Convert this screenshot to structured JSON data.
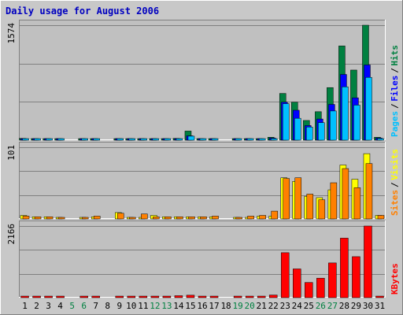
{
  "chart_data": [
    {
      "type": "bar",
      "title": "Daily usage for August 2006",
      "categories": [
        "1",
        "2",
        "3",
        "4",
        "5",
        "6",
        "7",
        "8",
        "9",
        "10",
        "11",
        "12",
        "13",
        "14",
        "15",
        "16",
        "17",
        "18",
        "19",
        "20",
        "21",
        "22",
        "23",
        "24",
        "25",
        "26",
        "27",
        "28",
        "29",
        "30",
        "31"
      ],
      "weekend_days": [
        "5",
        "6",
        "12",
        "13",
        "19",
        "20",
        "26",
        "27"
      ],
      "ymax_label": "1574",
      "ylim": [
        0,
        1574
      ],
      "right_label": [
        "Pages",
        "Files",
        "Hits"
      ],
      "series": [
        {
          "name": "Hits",
          "color": "#008040",
          "values": [
            25,
            8,
            8,
            8,
            0,
            8,
            8,
            0,
            16,
            8,
            8,
            8,
            8,
            25,
            125,
            8,
            8,
            0,
            8,
            8,
            8,
            40,
            640,
            520,
            270,
            390,
            720,
            1290,
            960,
            1574,
            40
          ]
        },
        {
          "name": "Files",
          "color": "#0000ff",
          "values": [
            20,
            6,
            6,
            6,
            0,
            6,
            6,
            0,
            12,
            6,
            6,
            6,
            6,
            20,
            60,
            6,
            6,
            0,
            6,
            6,
            6,
            30,
            520,
            410,
            200,
            290,
            490,
            900,
            580,
            1030,
            30
          ]
        },
        {
          "name": "Pages",
          "color": "#00c0ff",
          "values": [
            12,
            4,
            4,
            4,
            0,
            4,
            4,
            0,
            8,
            4,
            4,
            4,
            4,
            12,
            55,
            4,
            4,
            0,
            4,
            4,
            4,
            20,
            500,
            300,
            180,
            240,
            400,
            730,
            480,
            860,
            15
          ]
        }
      ]
    },
    {
      "type": "bar",
      "categories": [
        "1",
        "2",
        "3",
        "4",
        "5",
        "6",
        "7",
        "8",
        "9",
        "10",
        "11",
        "12",
        "13",
        "14",
        "15",
        "16",
        "17",
        "18",
        "19",
        "20",
        "21",
        "22",
        "23",
        "24",
        "25",
        "26",
        "27",
        "28",
        "29",
        "30",
        "31"
      ],
      "ymax_label": "101",
      "ylim": [
        0,
        101
      ],
      "right_label": [
        "Sites",
        "Visits"
      ],
      "series": [
        {
          "name": "Visits",
          "color": "#ffff00",
          "values": [
            5,
            3,
            3,
            2,
            0,
            2,
            3,
            0,
            9,
            2,
            2,
            5,
            3,
            3,
            3,
            3,
            3,
            0,
            2,
            2,
            4,
            4,
            58,
            53,
            32,
            30,
            41,
            76,
            56,
            92,
            5
          ]
        },
        {
          "name": "Sites",
          "color": "#ff8000",
          "values": [
            4,
            3,
            3,
            2,
            0,
            2,
            4,
            0,
            8,
            2,
            7,
            3,
            3,
            3,
            3,
            3,
            4,
            0,
            2,
            4,
            5,
            11,
            57,
            58,
            35,
            27,
            51,
            71,
            44,
            78,
            5
          ]
        }
      ]
    },
    {
      "type": "bar",
      "categories": [
        "1",
        "2",
        "3",
        "4",
        "5",
        "6",
        "7",
        "8",
        "9",
        "10",
        "11",
        "12",
        "13",
        "14",
        "15",
        "16",
        "17",
        "18",
        "19",
        "20",
        "21",
        "22",
        "23",
        "24",
        "25",
        "26",
        "27",
        "28",
        "29",
        "30",
        "31"
      ],
      "ymax_label": "2166",
      "ylim": [
        0,
        2166
      ],
      "right_label": [
        "KBytes"
      ],
      "series": [
        {
          "name": "KBytes",
          "color": "#ff0000",
          "values": [
            45,
            22,
            22,
            22,
            0,
            22,
            22,
            0,
            35,
            22,
            22,
            22,
            22,
            60,
            75,
            22,
            22,
            0,
            22,
            22,
            22,
            80,
            1360,
            870,
            460,
            590,
            1050,
            1800,
            1240,
            2166,
            45
          ]
        }
      ]
    }
  ]
}
